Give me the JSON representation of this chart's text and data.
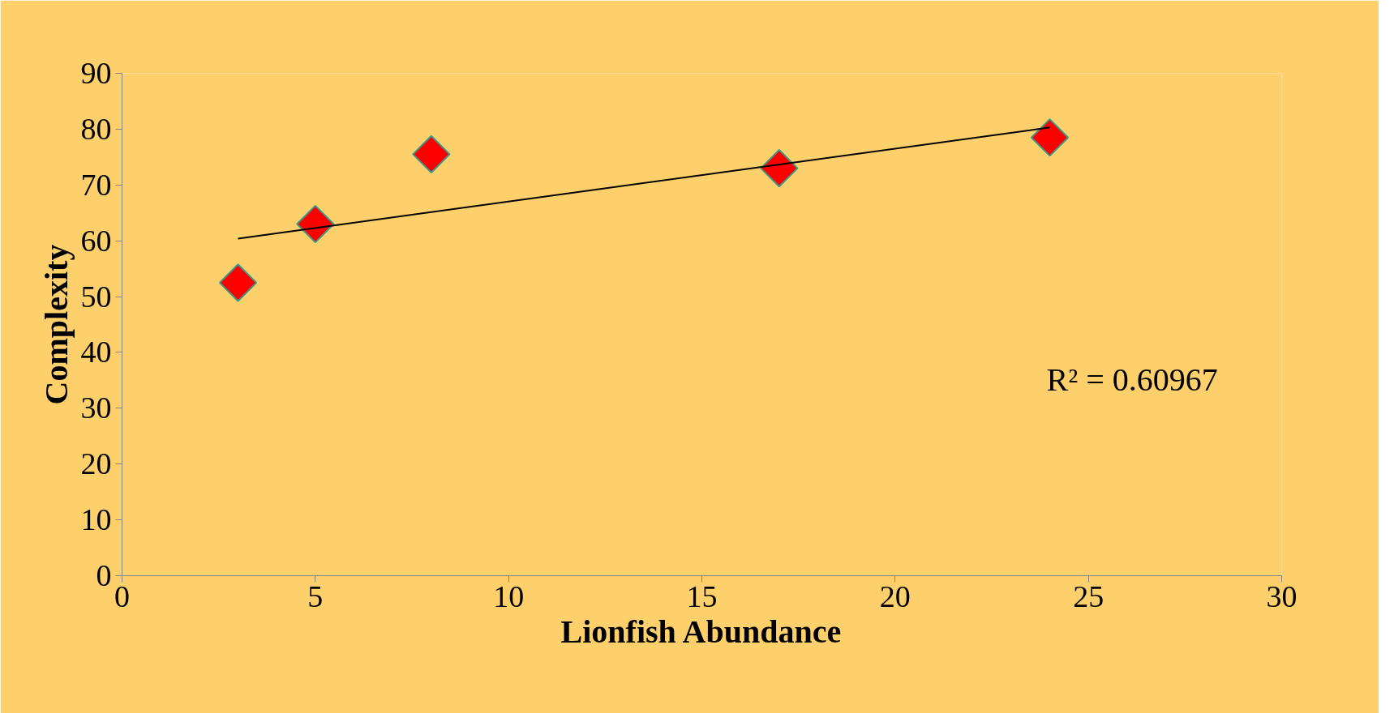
{
  "chart_data": {
    "type": "scatter",
    "xlabel": "Lionfish Abundance",
    "ylabel": "Complexity",
    "annotations": [
      "R² = 0.60967"
    ],
    "xlim": [
      0,
      30
    ],
    "xticks": [
      0,
      5,
      10,
      15,
      20,
      25,
      30
    ],
    "ylim": [
      0,
      90
    ],
    "yticks": [
      0,
      10,
      20,
      30,
      40,
      50,
      60,
      70,
      80,
      90
    ],
    "grid": false,
    "marker": "diamond",
    "series": [
      {
        "color": "#ff0000",
        "x": [
          3,
          5,
          8,
          17,
          24
        ],
        "values": [
          52.5,
          63,
          75.5,
          73,
          78.5
        ]
      },
      {
        "type": "line",
        "color": "#000000",
        "marker": "none",
        "line_style": "solid",
        "x": [
          3,
          24
        ],
        "values": [
          60.4,
          80.3
        ]
      }
    ]
  }
}
